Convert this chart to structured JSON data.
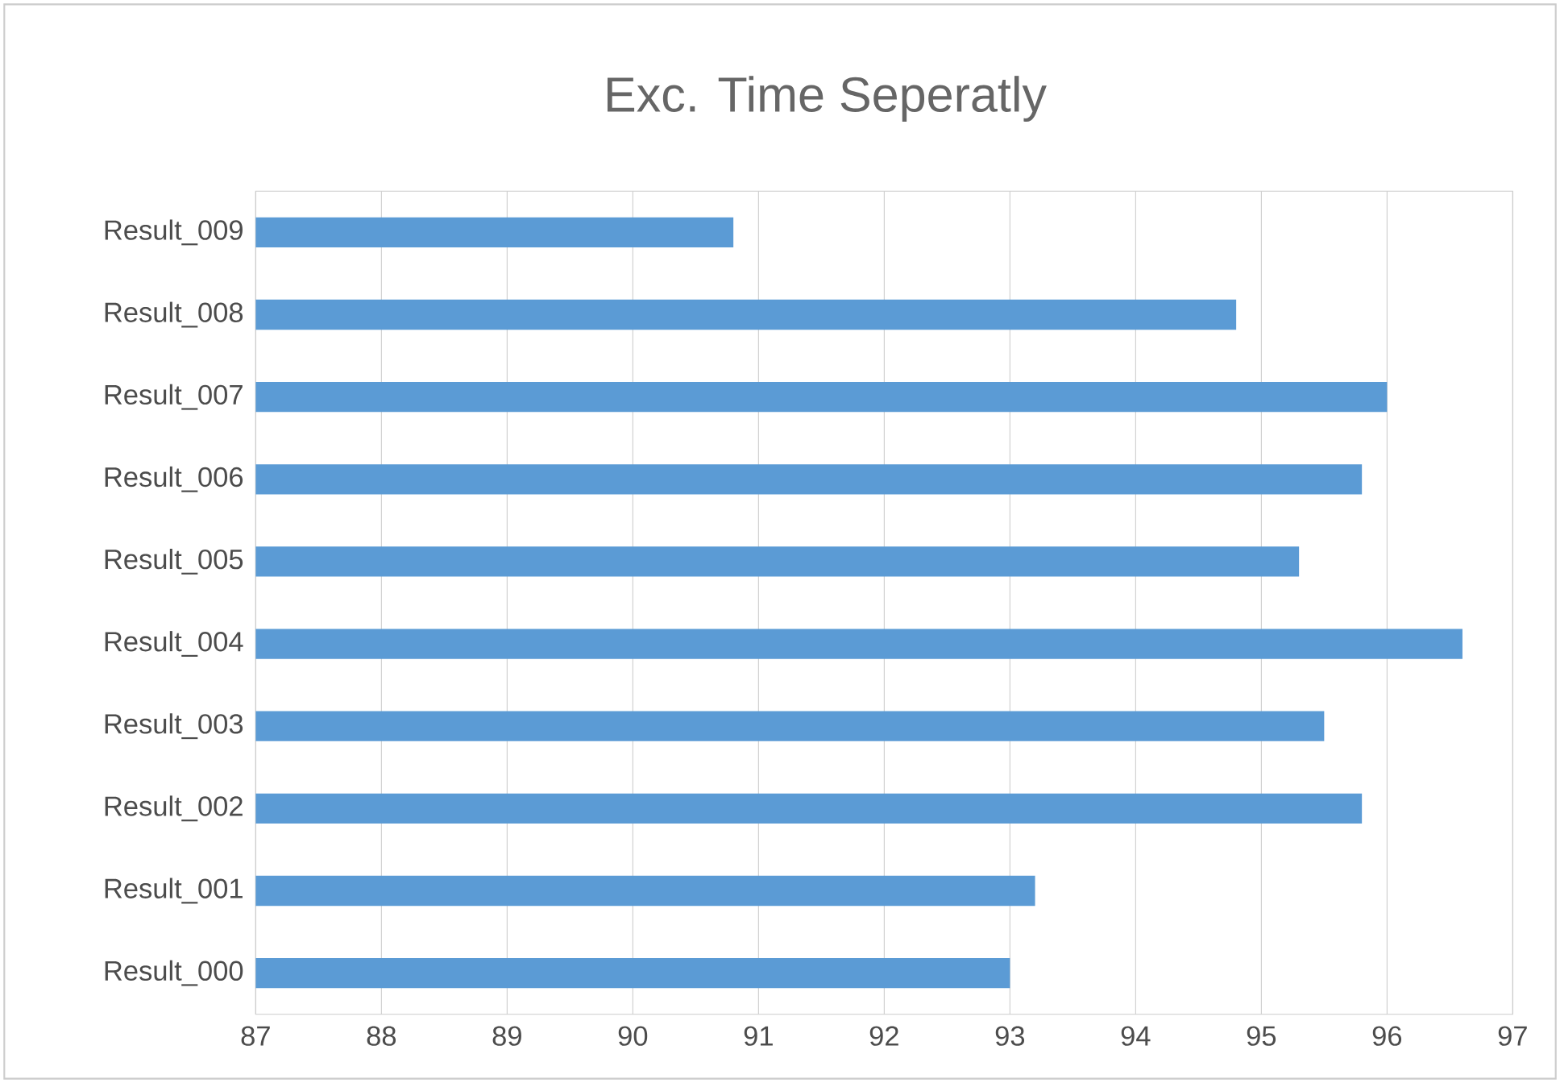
{
  "chart_data": {
    "type": "bar",
    "orientation": "horizontal",
    "title": "Exc. Time Seperatly",
    "categories": [
      "Result_009",
      "Result_008",
      "Result_007",
      "Result_006",
      "Result_005",
      "Result_004",
      "Result_003",
      "Result_002",
      "Result_001",
      "Result_000"
    ],
    "values": [
      90.8,
      94.8,
      96.0,
      95.8,
      95.3,
      96.6,
      95.5,
      95.8,
      93.2,
      93.0
    ],
    "color": "#5b9bd5",
    "xlim": [
      87,
      97
    ],
    "xticks": [
      87,
      88,
      89,
      90,
      91,
      92,
      93,
      94,
      95,
      96,
      97
    ],
    "grid": "x"
  }
}
